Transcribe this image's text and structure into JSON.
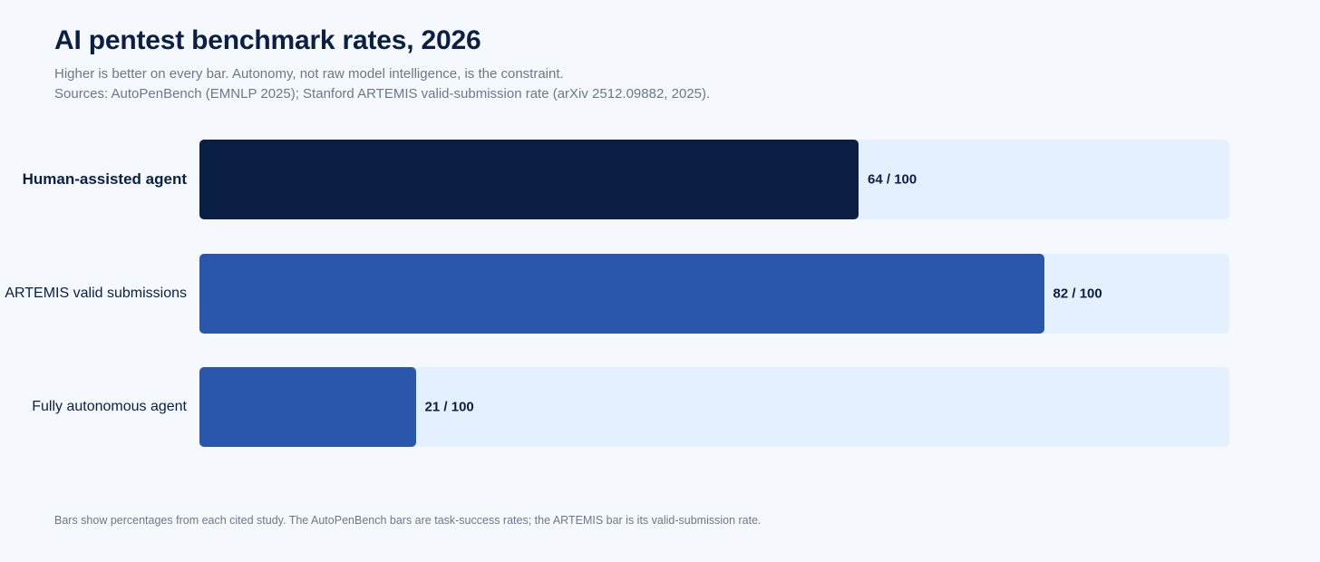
{
  "header": {
    "title": "AI pentest benchmark rates, 2026",
    "subtitle_line1": "Higher is better on every bar. Autonomy, not raw model intelligence, is the constraint.",
    "subtitle_line2": "Sources: AutoPenBench (EMNLP 2025); Stanford ARTEMIS valid-submission rate (arXiv 2512.09882, 2025)."
  },
  "footnote": "Bars show percentages from each cited study. The AutoPenBench bars are task-success rates; the ARTEMIS bar is its valid-submission rate.",
  "colors": {
    "background": "#f5f9fe",
    "track": "#e5f0fe",
    "highlight_bar": "#0b1f45",
    "standard_bar": "#2a56ab",
    "text_dark": "#0b1f45",
    "text_muted": "#6b778a"
  },
  "chart_data": {
    "type": "bar",
    "orientation": "horizontal",
    "title": "AI pentest benchmark rates, 2026",
    "xlim": [
      0,
      100
    ],
    "categories": [
      "Human-assisted agent",
      "ARTEMIS valid submissions",
      "Fully autonomous agent"
    ],
    "values": [
      64,
      82,
      21
    ],
    "value_labels": [
      "64 / 100",
      "82 / 100",
      "21 / 100"
    ],
    "highlighted": [
      true,
      false,
      false
    ],
    "grid": false,
    "legend": "none"
  }
}
